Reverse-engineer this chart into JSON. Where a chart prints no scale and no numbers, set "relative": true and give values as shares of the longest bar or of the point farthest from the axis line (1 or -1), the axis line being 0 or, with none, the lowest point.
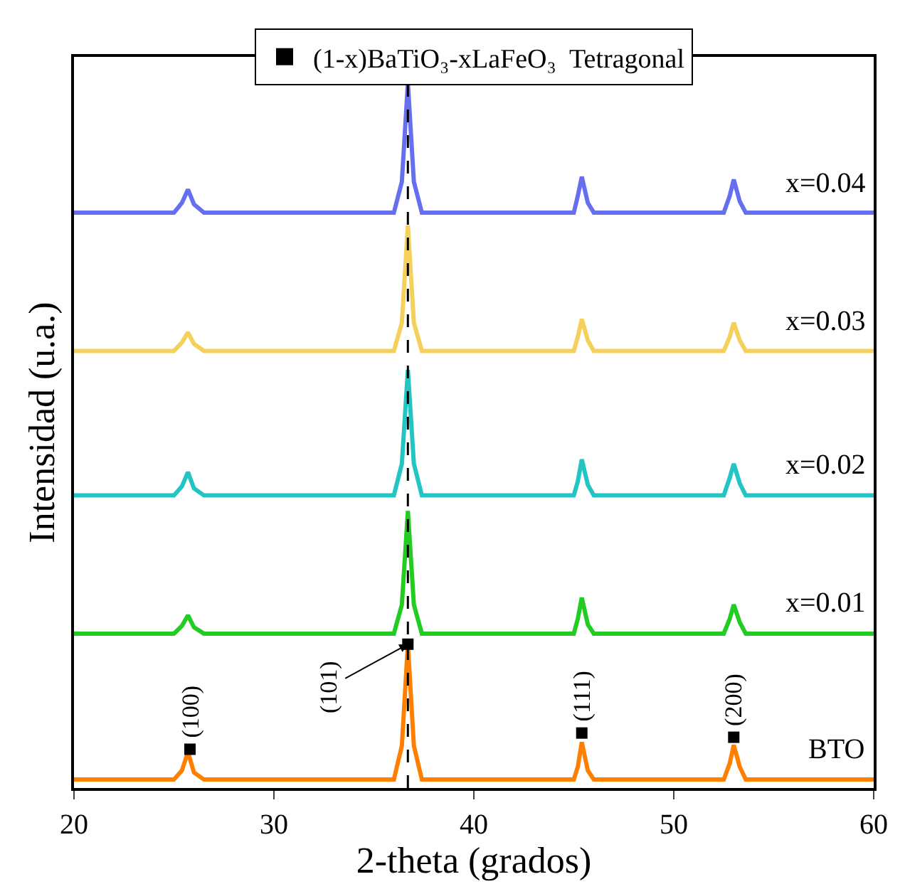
{
  "chart_data": {
    "type": "line",
    "relative": true,
    "xlabel": "2-theta (grados)",
    "ylabel": "Intensidad (u.a.)",
    "x": [
      20,
      25.0,
      25.4,
      25.7,
      26.0,
      26.5,
      36.0,
      36.4,
      36.7,
      37.0,
      37.4,
      45.0,
      45.2,
      45.4,
      45.7,
      46.0,
      52.5,
      52.8,
      53.0,
      53.3,
      53.6,
      60
    ],
    "xlim": [
      20,
      60
    ],
    "xticks": [
      20,
      30,
      40,
      50,
      60
    ],
    "legend": "top",
    "line_style": "solid",
    "marker": "none",
    "series": [
      {
        "name": "BTO",
        "color": "#ff8000",
        "values": [
          0.012,
          0.012,
          0.025,
          0.051,
          0.022,
          0.012,
          0.012,
          0.06,
          0.204,
          0.06,
          0.012,
          0.012,
          0.03,
          0.065,
          0.025,
          0.012,
          0.012,
          0.035,
          0.061,
          0.03,
          0.012,
          0.012
        ]
      },
      {
        "name": "x=0.01",
        "color": "#22cc22",
        "values": [
          0.219,
          0.219,
          0.23,
          0.245,
          0.228,
          0.219,
          0.219,
          0.26,
          0.393,
          0.26,
          0.219,
          0.219,
          0.24,
          0.27,
          0.232,
          0.219,
          0.219,
          0.24,
          0.26,
          0.235,
          0.219,
          0.219
        ]
      },
      {
        "name": "x=0.02",
        "color": "#22c4c4",
        "values": [
          0.415,
          0.415,
          0.428,
          0.448,
          0.425,
          0.415,
          0.415,
          0.46,
          0.593,
          0.46,
          0.415,
          0.415,
          0.435,
          0.466,
          0.43,
          0.415,
          0.415,
          0.44,
          0.46,
          0.432,
          0.415,
          0.415
        ]
      },
      {
        "name": "x=0.03",
        "color": "#f5d05a",
        "values": [
          0.62,
          0.62,
          0.632,
          0.646,
          0.63,
          0.62,
          0.62,
          0.66,
          0.798,
          0.66,
          0.62,
          0.62,
          0.64,
          0.665,
          0.635,
          0.62,
          0.62,
          0.64,
          0.66,
          0.635,
          0.62,
          0.62
        ]
      },
      {
        "name": "x=0.04",
        "color": "#6670ee",
        "values": [
          0.816,
          0.816,
          0.83,
          0.849,
          0.828,
          0.816,
          0.816,
          0.86,
          1.0,
          0.86,
          0.816,
          0.816,
          0.84,
          0.867,
          0.83,
          0.816,
          0.816,
          0.84,
          0.863,
          0.832,
          0.816,
          0.816
        ]
      },
      {
        "name": "(1-x)BaTiO₃-xLaFeO₃  Tetragonal",
        "type": "scatter",
        "marker": "square",
        "color": "#000000",
        "x": [
          25.8,
          36.7,
          45.4,
          53.0
        ],
        "values": [
          0.055,
          0.204,
          0.078,
          0.072
        ]
      }
    ],
    "ref_lines": [
      {
        "axis": "x",
        "value": 36.7,
        "color": "#000000",
        "line_style": "dashed"
      }
    ],
    "annotations": [
      {
        "text": "(100)",
        "x": 25.8,
        "y": 0.055
      },
      {
        "text": "(101)",
        "x": 36.7,
        "y": 0.204
      },
      {
        "text": "(111)",
        "x": 45.4,
        "y": 0.078
      },
      {
        "text": "(200)",
        "x": 53.0,
        "y": 0.072
      }
    ]
  }
}
